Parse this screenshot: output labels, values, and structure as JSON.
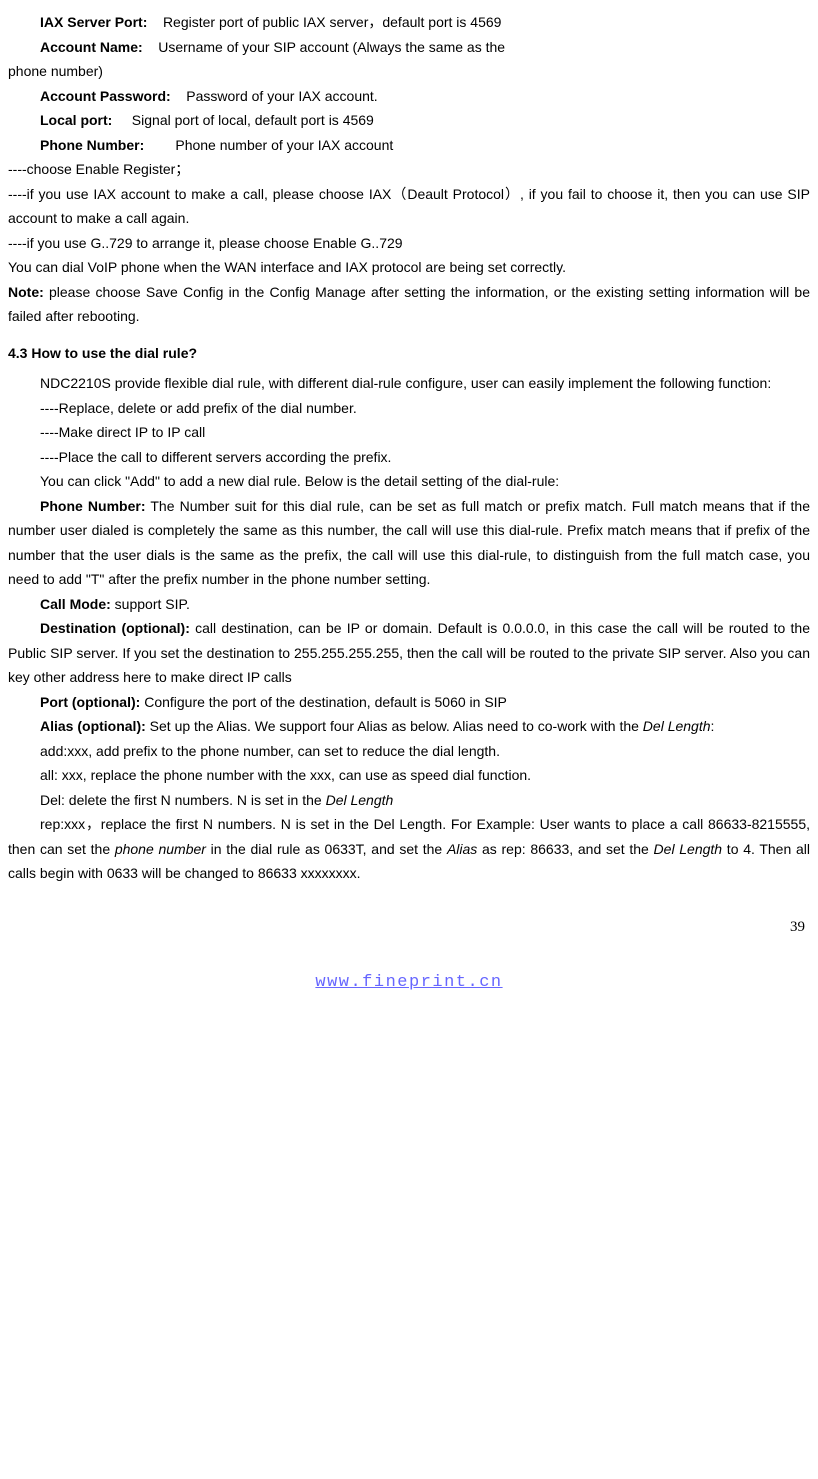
{
  "definitions": {
    "iax_server_port": {
      "label": "IAX Server Port:",
      "text": "Register port of public IAX server，default port is 4569"
    },
    "account_name": {
      "label": "Account Name:",
      "text_part1": "Username of your SIP account (Always the same as the",
      "text_part2": "phone number)"
    },
    "account_password": {
      "label": "Account Password:",
      "text": "Password of your IAX account."
    },
    "local_port": {
      "label": "Local port:",
      "text": "Signal port of local, default port is 4569"
    },
    "phone_number": {
      "label": "Phone Number:",
      "text": "Phone number of your IAX account"
    }
  },
  "bullets": {
    "b1": "----choose Enable Register；",
    "b2": "----if you use IAX account to make a call, please choose IAX（Deault Protocol）, if you fail to choose it, then you can use SIP account to make a call again.",
    "b3": "----if you use G..729 to arrange it, please choose Enable G..729"
  },
  "paragraphs": {
    "p1": "You can dial VoIP phone when the WAN interface and IAX protocol are being set correctly.",
    "note_label": "Note:",
    "note_text": " please choose Save Config in the Config Manage after setting the information, or the existing setting information will be failed after rebooting."
  },
  "section_heading": "4.3 How to use the dial rule?",
  "section_body": {
    "intro": "NDC2210S provide flexible   dial rule, with different dial-rule configure, user can easily implement the following function:",
    "f1": "----Replace, delete or add prefix of the dial number.",
    "f2": "----Make direct IP to IP call",
    "f3": "----Place the call to different servers according the prefix.",
    "add_rule": "You can click \"Add\" to add a new dial rule. Below is the detail setting of the dial-rule:",
    "phone_number_label": "Phone Number:",
    "phone_number_text": " The Number suit for this dial rule, can be set as full match or prefix match. Full match means that if the number user dialed is completely the same as this number, the call will use this dial-rule. Prefix match means that if prefix of the number that the user dials is the same as the prefix, the call will use this dial-rule, to distinguish from the full match case, you need to add \"T\" after the prefix number in the phone number setting.",
    "call_mode_label": "Call Mode:",
    "call_mode_text": " support SIP.",
    "destination_label": "Destination (optional):",
    "destination_text": " call destination, can be IP or domain. Default is 0.0.0.0, in this case the call will be routed to the Public SIP server. If you set the destination to 255.255.255.255, then the call will be routed to the private SIP server. Also you can key other address here to make direct IP calls",
    "port_label": "Port (optional):",
    "port_text": " Configure the port of the destination, default is 5060 in SIP",
    "alias_label": "Alias (optional):",
    "alias_text_part1": " Set up the Alias. We support four Alias as below. Alias need to co-work with the ",
    "alias_del_length": "Del Length",
    "alias_text_part2": ":",
    "alias_add": "add:xxx, add prefix to the phone number, can set to reduce the dial length.",
    "alias_all": "all: xxx, replace the phone number with the xxx, can use as speed dial function.",
    "alias_del_part1": "Del: delete the first N numbers. N is set in the ",
    "alias_del_italic": "Del Length",
    "alias_rep_part1": "rep:xxx，replace the first N numbers. N is set in the Del Length. For Example: User wants to place a call 86633-8215555, then can set the ",
    "alias_rep_italic1": "phone number",
    "alias_rep_part2": " in the dial rule as 0633T, and set the ",
    "alias_rep_italic2": "Alias",
    "alias_rep_part3": " as rep: 86633, and set the ",
    "alias_rep_italic3": "Del Length",
    "alias_rep_part4": " to 4. Then all calls begin with 0633 will be changed to 86633 xxxxxxxx."
  },
  "page_number": "39",
  "footer_url": "www.fineprint.cn",
  "footer_href": "http://www.fineprint.cn"
}
